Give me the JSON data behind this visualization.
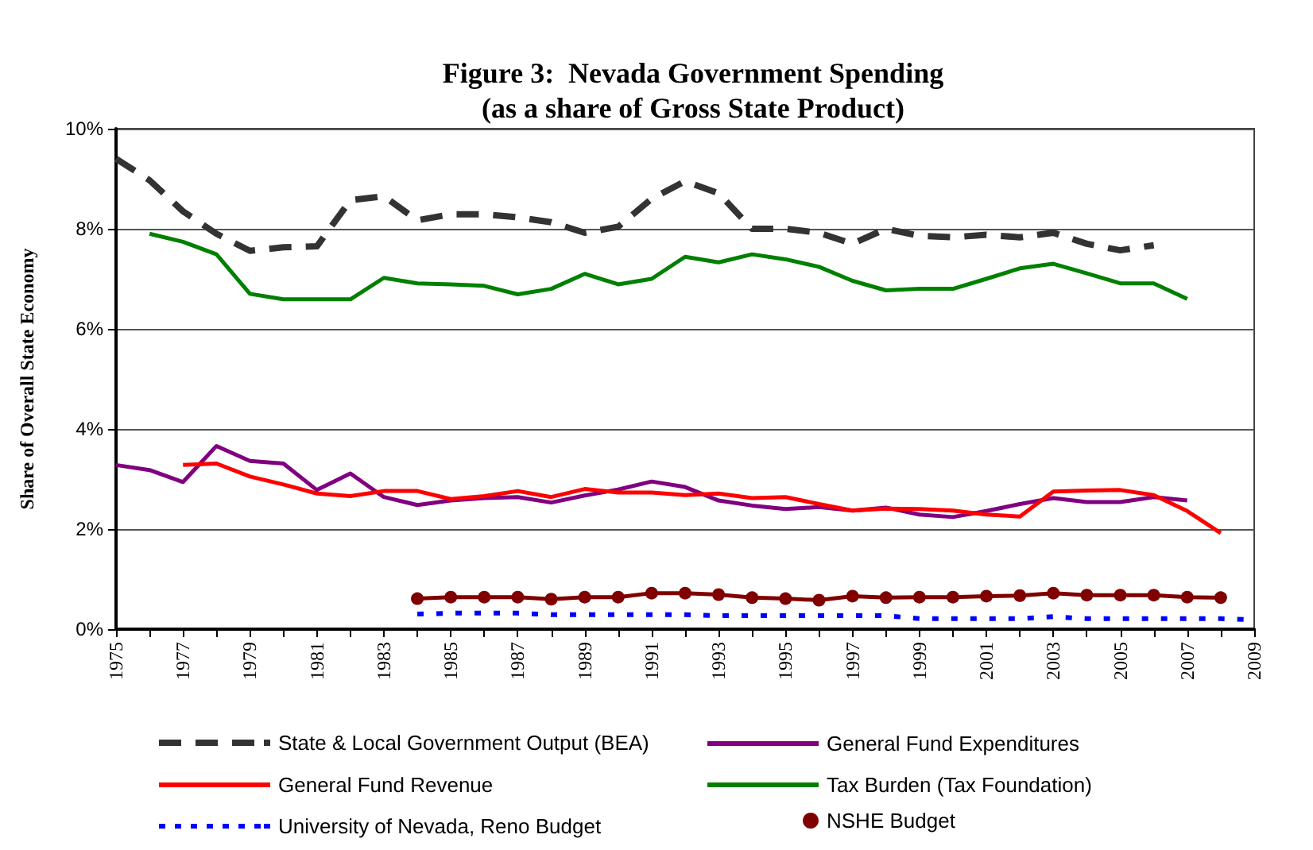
{
  "chart_data": {
    "type": "line",
    "title": "Figure 3:  Nevada Government Spending",
    "subtitle": "(as a share of Gross State Product)",
    "ylabel": "Share of Overall State Economy",
    "x": [
      1975,
      1976,
      1977,
      1978,
      1979,
      1980,
      1981,
      1982,
      1983,
      1984,
      1985,
      1986,
      1987,
      1988,
      1989,
      1990,
      1991,
      1992,
      1993,
      1994,
      1995,
      1996,
      1997,
      1998,
      1999,
      2000,
      2001,
      2002,
      2003,
      2004,
      2005,
      2006,
      2007,
      2008,
      2009
    ],
    "xlim": [
      1975,
      2009
    ],
    "xticks": [
      1975,
      {
        "value": 1976,
        "label": null
      },
      1977,
      {
        "value": 1978,
        "label": null
      },
      1979,
      {
        "value": 1980,
        "label": null
      },
      1981,
      {
        "value": 1982,
        "label": null
      },
      1983,
      {
        "value": 1984,
        "label": null
      },
      1985,
      {
        "value": 1986,
        "label": null
      },
      1987,
      {
        "value": 1988,
        "label": null
      },
      1989,
      {
        "value": 1990,
        "label": null
      },
      1991,
      {
        "value": 1992,
        "label": null
      },
      1993,
      {
        "value": 1994,
        "label": null
      },
      1995,
      {
        "value": 1996,
        "label": null
      },
      1997,
      {
        "value": 1998,
        "label": null
      },
      1999,
      {
        "value": 2000,
        "label": null
      },
      2001,
      {
        "value": 2002,
        "label": null
      },
      2003,
      {
        "value": 2004,
        "label": null
      },
      2005,
      {
        "value": 2006,
        "label": null
      },
      2007,
      {
        "value": 2008,
        "label": null
      },
      2009
    ],
    "ylim": [
      0,
      10
    ],
    "yticks": [
      {
        "value": 0,
        "label": "0%"
      },
      {
        "value": 2,
        "label": "2%"
      },
      {
        "value": 4,
        "label": "4%"
      },
      {
        "value": 6,
        "label": "6%"
      },
      {
        "value": 8,
        "label": "8%"
      },
      {
        "value": 10,
        "label": "10%"
      }
    ],
    "grid": "y",
    "legend": "bottom",
    "marker": "none",
    "series": [
      {
        "name": "State & Local Government Output (BEA)",
        "color": "#333333",
        "line_style": "dashed",
        "values": [
          9.4,
          8.97,
          8.35,
          7.9,
          7.56,
          7.63,
          7.65,
          8.57,
          8.65,
          8.17,
          8.29,
          8.29,
          8.23,
          8.13,
          7.92,
          8.04,
          8.6,
          8.95,
          8.71,
          8.0,
          8.0,
          7.92,
          7.7,
          8.0,
          7.86,
          7.83,
          7.88,
          7.83,
          7.92,
          7.7,
          7.57,
          7.67,
          null,
          null,
          null
        ]
      },
      {
        "name": "General Fund Expenditures",
        "color": "#800080",
        "values": [
          3.28,
          3.18,
          2.94,
          3.66,
          3.36,
          3.31,
          2.78,
          3.11,
          2.64,
          2.48,
          2.57,
          2.62,
          2.64,
          2.53,
          2.67,
          2.79,
          2.95,
          2.84,
          2.57,
          2.47,
          2.4,
          2.44,
          2.37,
          2.43,
          2.29,
          2.24,
          2.36,
          2.5,
          2.62,
          2.54,
          2.54,
          2.64,
          2.57,
          null,
          null
        ]
      },
      {
        "name": "General Fund Revenue",
        "color": "#ff0000",
        "values": [
          null,
          null,
          3.28,
          3.31,
          3.05,
          2.89,
          2.71,
          2.66,
          2.76,
          2.76,
          2.6,
          2.66,
          2.76,
          2.64,
          2.8,
          2.73,
          2.73,
          2.68,
          2.71,
          2.62,
          2.64,
          2.5,
          2.37,
          2.41,
          2.4,
          2.37,
          2.29,
          2.25,
          2.75,
          2.77,
          2.78,
          2.68,
          2.36,
          1.92,
          null
        ]
      },
      {
        "name": "Tax Burden (Tax Foundation)",
        "color": "#008000",
        "values": [
          null,
          7.9,
          7.74,
          7.49,
          6.7,
          6.59,
          6.59,
          6.59,
          7.02,
          6.91,
          6.89,
          6.86,
          6.69,
          6.8,
          7.1,
          6.89,
          7.0,
          7.44,
          7.33,
          7.49,
          7.39,
          7.24,
          6.96,
          6.77,
          6.8,
          6.8,
          7.0,
          7.21,
          7.3,
          7.11,
          6.91,
          6.91,
          6.6,
          null,
          null
        ]
      },
      {
        "name": "University of Nevada, Reno Budget",
        "color": "#0000ff",
        "line_style": "dotted",
        "values": [
          null,
          null,
          null,
          null,
          null,
          null,
          null,
          null,
          null,
          0.3,
          0.32,
          0.32,
          0.32,
          0.29,
          0.29,
          0.29,
          0.29,
          0.29,
          0.27,
          0.27,
          0.27,
          0.27,
          0.27,
          0.27,
          0.21,
          0.21,
          0.21,
          0.21,
          0.25,
          0.21,
          0.21,
          0.21,
          0.21,
          0.21,
          0.19
        ]
      },
      {
        "name": "NSHE Budget",
        "color": "#800000",
        "marker": "circle",
        "values": [
          null,
          null,
          null,
          null,
          null,
          null,
          null,
          null,
          null,
          0.61,
          0.64,
          0.64,
          0.64,
          0.6,
          0.64,
          0.64,
          0.72,
          0.72,
          0.69,
          0.63,
          0.61,
          0.58,
          0.66,
          0.63,
          0.64,
          0.64,
          0.66,
          0.67,
          0.72,
          0.68,
          0.68,
          0.68,
          0.64,
          0.63,
          null
        ]
      }
    ]
  }
}
